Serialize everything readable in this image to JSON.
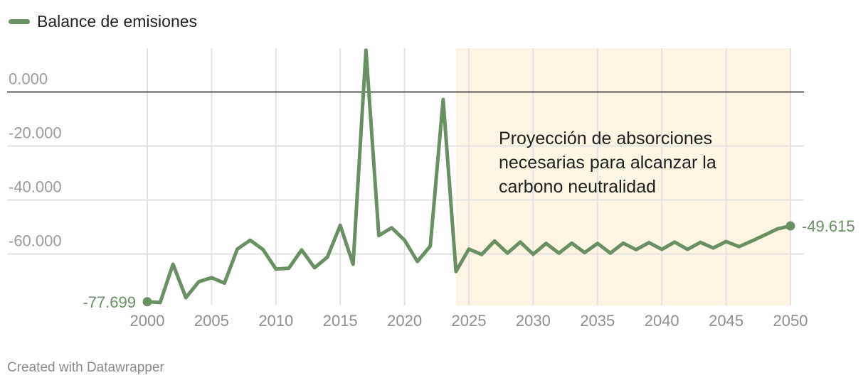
{
  "legend": {
    "label": "Balance de emisiones",
    "color": "#6b8f65"
  },
  "footer": {
    "credit": "Created with Datawrapper"
  },
  "chart_data": {
    "type": "line",
    "title": "",
    "xlabel": "",
    "ylabel": "",
    "xlim": [
      2000,
      2050
    ],
    "ylim": [
      -78000,
      16000
    ],
    "x_ticks": [
      2000,
      2005,
      2010,
      2015,
      2020,
      2025,
      2030,
      2035,
      2040,
      2045,
      2050
    ],
    "x_tick_labels": [
      "2000",
      "2005",
      "2010",
      "2015",
      "2020",
      "2025",
      "2030",
      "2035",
      "2040",
      "2045",
      "2050"
    ],
    "y_ticks": [
      0,
      -20000,
      -40000,
      -60000
    ],
    "y_tick_labels": [
      "0.000",
      "-20.000",
      "-40.000",
      "-60.000"
    ],
    "grid": true,
    "legend_position": "top-left",
    "highlight_range": {
      "from": 2024,
      "to": 2050,
      "color": "#fdf5e4",
      "annotation": [
        "Proyección de absorciones",
        "necesarias para alcanzar la",
        "carbono neutralidad"
      ]
    },
    "series": [
      {
        "name": "Balance de emisiones",
        "color": "#6b8f65",
        "x": [
          2000,
          2001,
          2002,
          2003,
          2004,
          2005,
          2006,
          2007,
          2008,
          2009,
          2010,
          2011,
          2012,
          2013,
          2014,
          2015,
          2016,
          2017,
          2018,
          2019,
          2020,
          2021,
          2022,
          2023,
          2024,
          2025,
          2026,
          2027,
          2028,
          2029,
          2030,
          2031,
          2032,
          2033,
          2034,
          2035,
          2036,
          2037,
          2038,
          2039,
          2040,
          2041,
          2042,
          2043,
          2044,
          2045,
          2046,
          2047,
          2048,
          2049,
          2050
        ],
        "values": [
          -77699,
          -78000,
          -63800,
          -76200,
          -70300,
          -68800,
          -70800,
          -58200,
          -54900,
          -58400,
          -65600,
          -65300,
          -58500,
          -65100,
          -61200,
          -49400,
          -63800,
          15500,
          -53200,
          -50300,
          -54900,
          -62800,
          -57100,
          -2800,
          -66500,
          -58200,
          -60200,
          -55200,
          -59700,
          -55600,
          -60100,
          -56100,
          -59700,
          -56000,
          -59500,
          -56100,
          -59700,
          -56000,
          -58400,
          -55800,
          -58300,
          -55600,
          -58300,
          -55700,
          -57800,
          -55400,
          -57300,
          -55200,
          -53000,
          -50700,
          -49615
        ]
      }
    ],
    "end_labels": {
      "start": "-77.699",
      "end": "-49.615"
    }
  }
}
